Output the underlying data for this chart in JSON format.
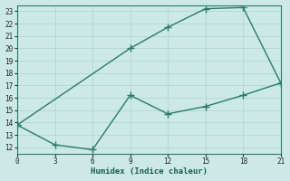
{
  "xlabel": "Humidex (Indice chaleur)",
  "line_color": "#2a7a6a",
  "background_color": "#cce9e6",
  "grid_color": "#b0d8d4",
  "x_upper": [
    0,
    9,
    12,
    15,
    18,
    21
  ],
  "y_upper": [
    13.8,
    20.0,
    21.7,
    23.2,
    23.3,
    17.2
  ],
  "x_lower": [
    0,
    3,
    6,
    9,
    12,
    15,
    18,
    21
  ],
  "y_lower": [
    13.8,
    12.2,
    11.8,
    16.2,
    14.7,
    15.3,
    16.2,
    17.2
  ],
  "xlim": [
    0,
    21
  ],
  "ylim": [
    11.5,
    23.5
  ],
  "yticks": [
    12,
    13,
    14,
    15,
    16,
    17,
    18,
    19,
    20,
    21,
    22,
    23
  ],
  "xticks": [
    0,
    3,
    6,
    9,
    12,
    15,
    18,
    21
  ],
  "markersize": 2.5,
  "linewidth": 1.0
}
